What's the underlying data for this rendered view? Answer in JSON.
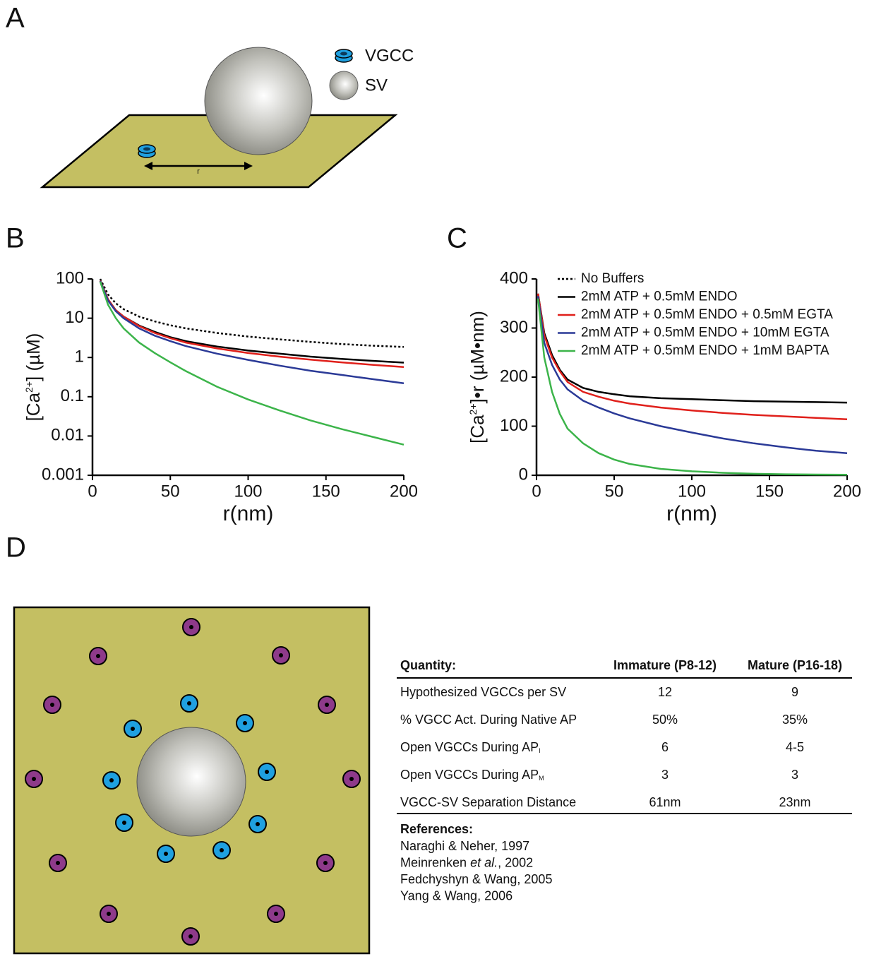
{
  "panel_labels": [
    "A",
    "B",
    "C",
    "D"
  ],
  "diagram_a": {
    "legend": [
      "VGCC",
      "SV"
    ],
    "distance_label": "r"
  },
  "chart_data": [
    {
      "type": "line",
      "log_y": true,
      "xlabel": "r(nm)",
      "ylabel": [
        "[Ca",
        "2+",
        "] (µM)"
      ],
      "x": [
        5,
        10,
        15,
        20,
        30,
        40,
        50,
        60,
        80,
        100,
        120,
        140,
        160,
        180,
        200
      ],
      "xlim": [
        0,
        200
      ],
      "xticks": [
        0,
        50,
        100,
        150,
        200
      ],
      "ylim": [
        0.001,
        100
      ],
      "yticks": [
        0.001,
        0.01,
        0.1,
        1,
        10,
        100
      ],
      "series": [
        {
          "color": "#000000",
          "dash": "3,3",
          "values": [
            100,
            40,
            24,
            17,
            11,
            8.3,
            6.6,
            5.5,
            4.2,
            3.4,
            2.9,
            2.5,
            2.2,
            2.0,
            1.85
          ]
        },
        {
          "color": "#000000",
          "values": [
            90,
            30,
            16,
            11,
            6.5,
            4.5,
            3.3,
            2.6,
            1.9,
            1.5,
            1.25,
            1.05,
            0.92,
            0.82,
            0.74
          ]
        },
        {
          "color": "#e0201b",
          "values": [
            90,
            30,
            16,
            11,
            6.3,
            4.2,
            3.1,
            2.4,
            1.7,
            1.3,
            1.05,
            0.88,
            0.75,
            0.65,
            0.57
          ]
        },
        {
          "color": "#2b3a97",
          "values": [
            88,
            28,
            15,
            10,
            5.5,
            3.6,
            2.6,
            1.95,
            1.25,
            0.87,
            0.62,
            0.46,
            0.36,
            0.28,
            0.22
          ]
        },
        {
          "color": "#3cb44a",
          "values": [
            85,
            22,
            10,
            5.5,
            2.4,
            1.3,
            0.75,
            0.45,
            0.18,
            0.085,
            0.045,
            0.025,
            0.015,
            0.0095,
            0.006
          ]
        }
      ]
    },
    {
      "type": "line",
      "log_y": false,
      "legend": "upper right",
      "xlabel": "r(nm)",
      "ylabel": [
        "[Ca",
        "2+",
        "]•r (µM•nm)"
      ],
      "x": [
        1,
        5,
        10,
        15,
        20,
        30,
        40,
        50,
        60,
        80,
        100,
        120,
        140,
        160,
        180,
        200
      ],
      "xlim": [
        0,
        200
      ],
      "xticks": [
        0,
        50,
        100,
        150,
        200
      ],
      "ylim": [
        0,
        400
      ],
      "yticks": [
        0,
        100,
        200,
        300,
        400
      ],
      "series": [
        {
          "name": "No Buffers",
          "color": "#000000",
          "dash": "3,3",
          "values": [
            null,
            null,
            null,
            null,
            null,
            null,
            null,
            null,
            null,
            null,
            null,
            null,
            null,
            null,
            null,
            null
          ]
        },
        {
          "name": "2mM ATP + 0.5mM ENDO",
          "color": "#000000",
          "values": [
            370,
            290,
            245,
            215,
            195,
            178,
            170,
            165,
            161,
            157,
            155,
            153,
            151,
            150,
            149,
            148
          ]
        },
        {
          "name": "2mM ATP + 0.5mM ENDO + 0.5mM EGTA",
          "color": "#e0201b",
          "values": [
            370,
            285,
            240,
            212,
            190,
            170,
            160,
            152,
            146,
            138,
            132,
            127,
            123,
            120,
            117,
            114
          ]
        },
        {
          "name": "2mM ATP + 0.5mM ENDO + 10mM EGTA",
          "color": "#2b3a97",
          "values": [
            365,
            270,
            225,
            195,
            175,
            152,
            138,
            126,
            116,
            100,
            87,
            75,
            65,
            57,
            50,
            45
          ]
        },
        {
          "name": "2mM ATP + 0.5mM ENDO + 1mM BAPTA",
          "color": "#3cb44a",
          "values": [
            360,
            240,
            170,
            125,
            95,
            65,
            45,
            32,
            23,
            13,
            8,
            5,
            3,
            2,
            1.5,
            1
          ]
        }
      ]
    }
  ],
  "table": {
    "header": [
      "Quantity:",
      "Immature (P8-12)",
      "Mature (P16-18)"
    ],
    "rows": [
      {
        "label": "Hypothesized VGCCs per SV",
        "immature": "12",
        "mature": "9"
      },
      {
        "label": "% VGCC Act. During Native AP",
        "immature": "50%",
        "mature": "35%"
      },
      {
        "label": "Open VGCCs During AP",
        "sub": "I",
        "immature": "6",
        "mature": "4-5"
      },
      {
        "label": "Open VGCCs During AP",
        "sub": "M",
        "immature": "3",
        "mature": "3"
      },
      {
        "label": "VGCC-SV Separation Distance",
        "immature": "61nm",
        "mature": "23nm"
      }
    ]
  },
  "references": {
    "title": "References:",
    "items": [
      {
        "text": "Naraghi & Neher, 1997"
      },
      {
        "text": "Meinrenken ",
        "italic": "et al.",
        "after": ", 2002"
      },
      {
        "text": "Fedchyshyn & Wang, 2005"
      },
      {
        "text": "Yang & Wang, 2006"
      }
    ]
  }
}
